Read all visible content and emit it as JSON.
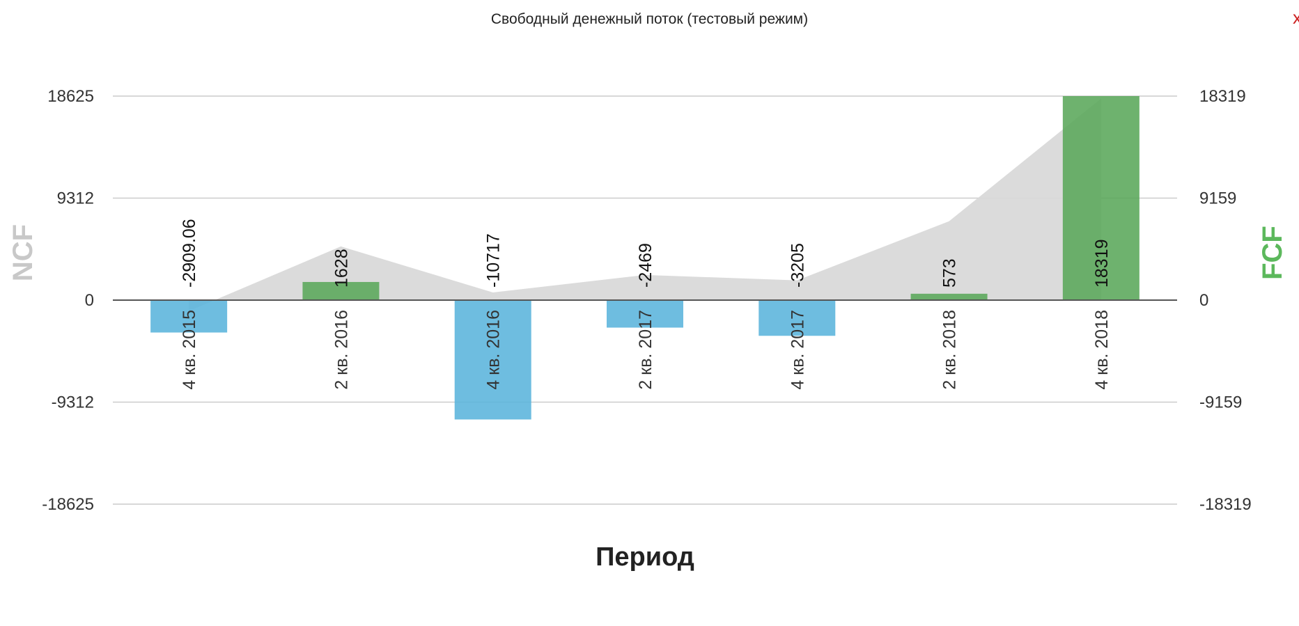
{
  "title": "Свободный денежный поток (тестовый режим)",
  "close_label": "x",
  "chart_data": {
    "type": "bar",
    "title": "Свободный денежный поток (тестовый режим)",
    "xlabel": "Период",
    "ylabel_left": "NCF",
    "ylabel_right": "FCF",
    "categories": [
      "4 кв. 2015",
      "2 кв. 2016",
      "4 кв. 2016",
      "2 кв. 2017",
      "4 кв. 2017",
      "2 кв. 2018",
      "4 кв. 2018"
    ],
    "series": [
      {
        "name": "FCF",
        "kind": "bar",
        "axis": "right",
        "values": [
          -2909.06,
          1628,
          -10717,
          -2469,
          -3205,
          573,
          18319
        ],
        "value_labels": [
          "-2909.06",
          "1628",
          "-10717",
          "-2469",
          "-3205",
          "573",
          "18319"
        ],
        "color_positive": "#5aa75a",
        "color_negative": "#5ab4dc"
      },
      {
        "name": "NCF",
        "kind": "area",
        "axis": "left",
        "values": [
          -1000,
          4900,
          700,
          2300,
          1800,
          7200,
          18400
        ],
        "color": "#d9d9d9"
      }
    ],
    "y_left": {
      "ylim": [
        -18625,
        18625
      ],
      "ticks": [
        18625,
        9312,
        0,
        -9312,
        -18625
      ]
    },
    "y_right": {
      "ylim": [
        -18319,
        18319
      ],
      "ticks": [
        18319,
        9159,
        0,
        -9159,
        -18319
      ]
    },
    "grid": true,
    "legend": "none",
    "colors": {
      "ncf_label": "#c8c8c8",
      "fcf_label": "#5cb85c",
      "grid": "#cccccc",
      "zero_line": "#555555",
      "text": "#333333"
    }
  }
}
